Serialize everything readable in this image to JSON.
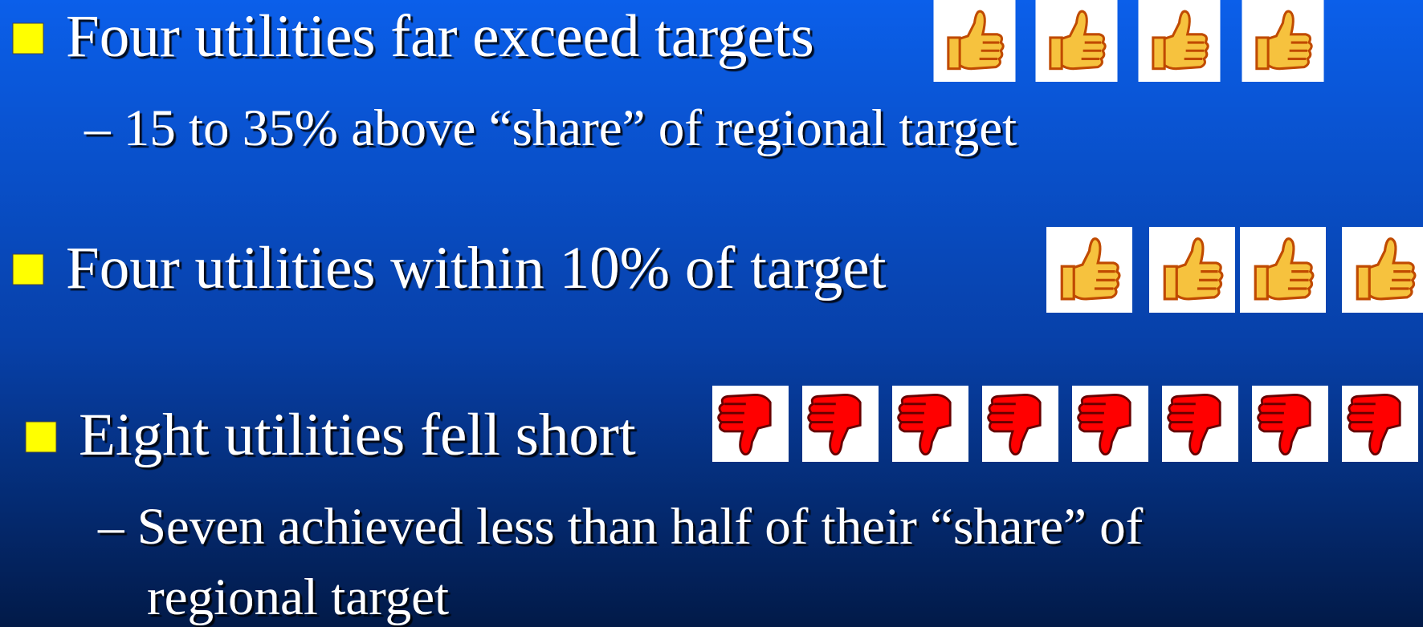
{
  "bullets": [
    {
      "text": "Four utilities far exceed targets",
      "sub": [
        "– 15 to 35% above “share” of regional target"
      ]
    },
    {
      "text": "Four utilities within 10% of target"
    },
    {
      "text": "Eight utilities fell short",
      "sub": [
        "– Seven achieved less than half of their “share” of",
        "regional target"
      ]
    }
  ]
}
